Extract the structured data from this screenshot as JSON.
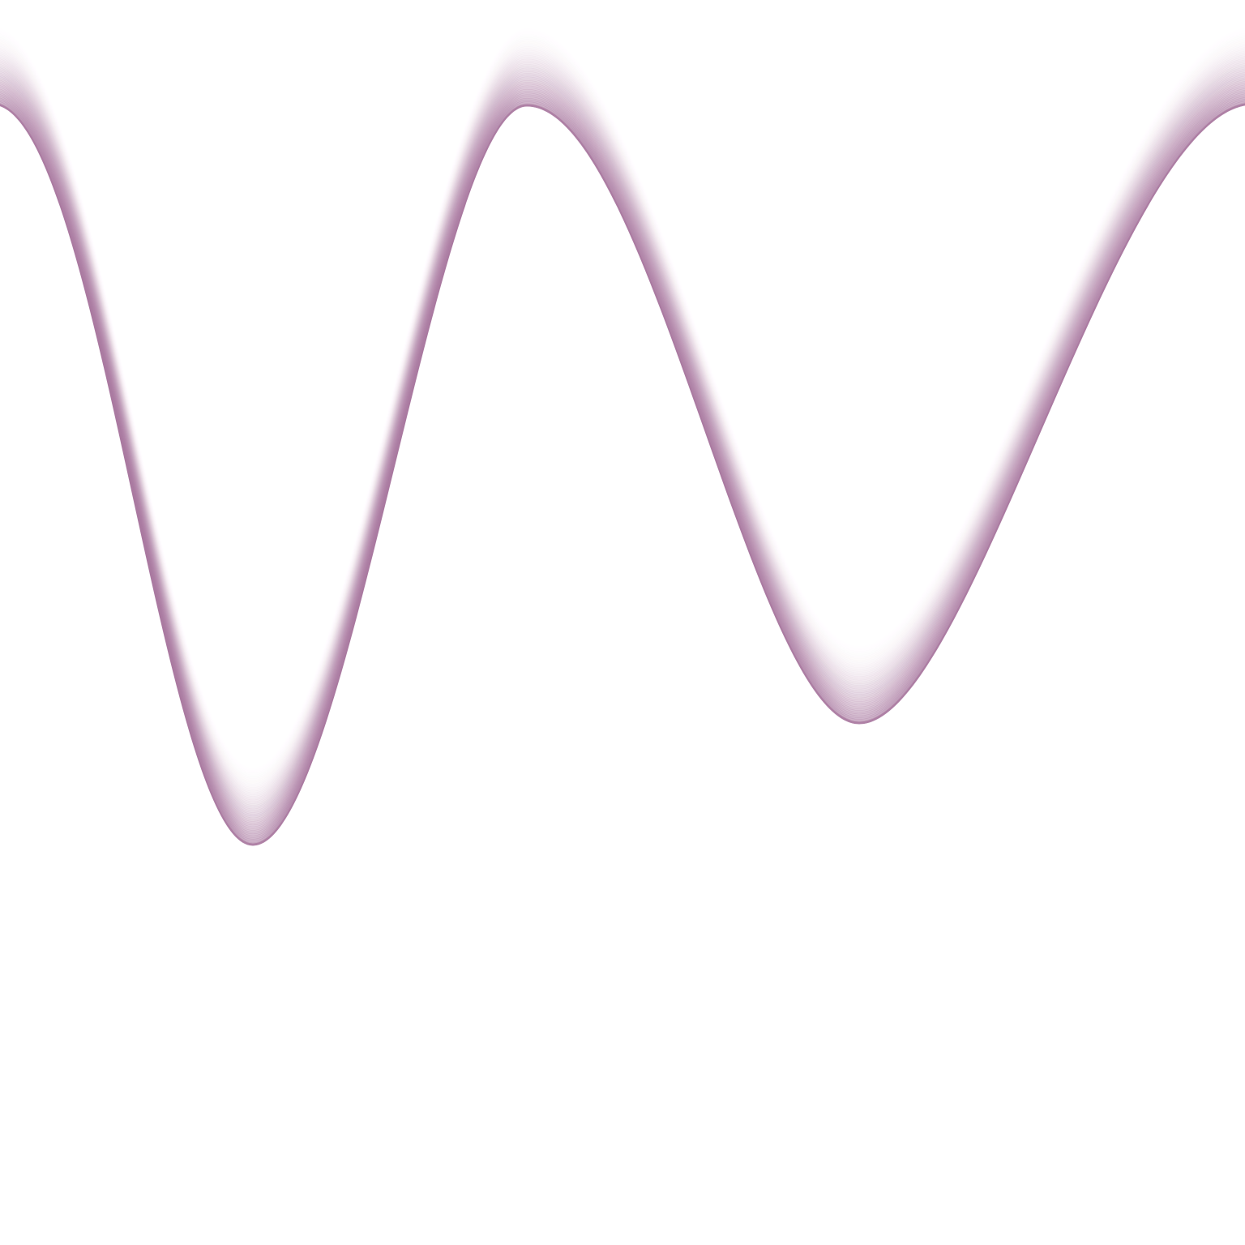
{
  "colors": {
    "background": "#ffffff",
    "wave": "#a8779f"
  },
  "shape": "wave-line-with-soft-glow-above"
}
